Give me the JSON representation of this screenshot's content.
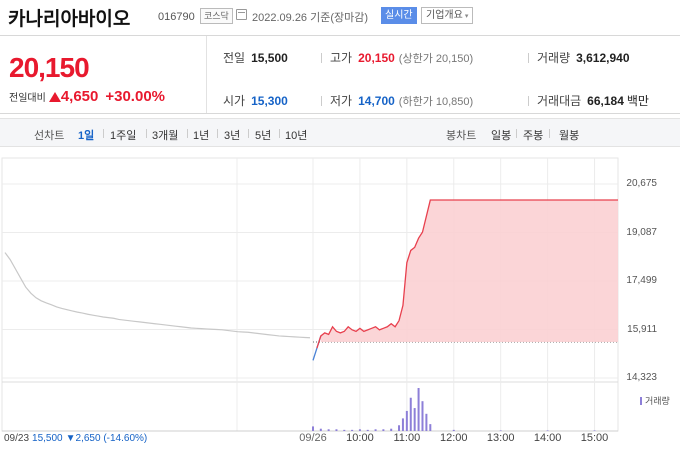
{
  "header": {
    "company": "카나리아바이오",
    "code": "016790",
    "market_badge": "코스닥",
    "date": "2022.09.26 기준(장마감)",
    "realtime_button": "실시간",
    "company_info_button": "기업개요",
    "company_info_caret": "▾"
  },
  "quote": {
    "price": "20,150",
    "change_label": "전일대비",
    "change_amount": "4,650",
    "change_percent": "+30.00%",
    "prev_close_label": "전일",
    "prev_close": "15,500",
    "high_label": "고가",
    "high": "20,150",
    "upper_limit_label": "(상한가 20,150)",
    "volume_label": "거래량",
    "volume": "3,612,940",
    "open_label": "시가",
    "open": "15,300",
    "low_label": "저가",
    "low": "14,700",
    "lower_limit_label": "(하한가 10,850)",
    "trade_value_label": "거래대금",
    "trade_value": "66,184",
    "trade_value_unit": "백만"
  },
  "toolbar": {
    "line_chart_label": "선차트",
    "periods": [
      "1일",
      "1주일",
      "3개월",
      "1년",
      "3년",
      "5년",
      "10년"
    ],
    "active_period": "1일",
    "candle_chart_label": "봉차트",
    "candles": [
      "일봉",
      "주봉",
      "월봉"
    ]
  },
  "chart_data": {
    "type": "line",
    "title": "",
    "xlabel": "",
    "ylabel": "",
    "ylim": [
      14323,
      20675
    ],
    "y_ticks": [
      "20,675",
      "19,087",
      "17,499",
      "15,911",
      "14,323"
    ],
    "x_ticks": [
      "09/26",
      "10:00",
      "11:00",
      "12:00",
      "13:00",
      "14:00",
      "15:00"
    ],
    "prev_day_label": "09/23",
    "prev_day_price": "15,500",
    "prev_day_change": "▼2,650 (-14.60%)",
    "reference_price": 15500,
    "volume_legend": "거래량",
    "prev_day_series": {
      "name": "09/23",
      "values": [
        18430,
        18200,
        17900,
        17600,
        17300,
        17100,
        16950,
        16850,
        16780,
        16720,
        16650,
        16600,
        16560,
        16520,
        16480,
        16450,
        16410,
        16380,
        16350,
        16320,
        16300,
        16280,
        16240,
        16220,
        16200,
        16180,
        16160,
        16140,
        16120,
        16100,
        16080,
        16060,
        16040,
        16020,
        16000,
        15980,
        15960,
        15950,
        15940,
        15930,
        15920,
        15910,
        15900,
        15880,
        15860,
        15840,
        15830,
        15820,
        15800,
        15780,
        15760,
        15740,
        15720,
        15700,
        15690,
        15680,
        15670,
        15660,
        15650,
        15640
      ]
    },
    "today_series": {
      "name": "09/26",
      "x": [
        "09:00",
        "09:05",
        "09:10",
        "09:15",
        "09:20",
        "09:25",
        "09:30",
        "09:35",
        "09:40",
        "09:45",
        "09:50",
        "09:55",
        "10:00",
        "10:05",
        "10:10",
        "10:15",
        "10:20",
        "10:25",
        "10:30",
        "10:35",
        "10:40",
        "10:45",
        "10:50",
        "10:55",
        "11:00",
        "11:05",
        "11:10",
        "11:15",
        "11:20",
        "11:30",
        "12:00",
        "12:30",
        "13:00",
        "13:30",
        "14:00",
        "14:30",
        "15:00",
        "15:20",
        "15:30"
      ],
      "values": [
        14900,
        15300,
        15700,
        15800,
        15750,
        16000,
        15850,
        15800,
        15850,
        16000,
        15900,
        15850,
        15950,
        15850,
        15900,
        15950,
        16000,
        15900,
        15950,
        16000,
        16100,
        16000,
        16200,
        16700,
        18100,
        18500,
        18600,
        18900,
        19100,
        20150,
        20150,
        20150,
        20150,
        20150,
        20150,
        20150,
        20150,
        20150,
        20150
      ]
    },
    "volume": {
      "name": "거래량",
      "x": [
        "09:00",
        "09:10",
        "09:20",
        "09:30",
        "09:40",
        "09:50",
        "10:00",
        "10:10",
        "10:20",
        "10:30",
        "10:40",
        "10:50",
        "10:55",
        "11:00",
        "11:05",
        "11:10",
        "11:15",
        "11:20",
        "11:25",
        "11:30",
        "12:00",
        "13:00",
        "14:00",
        "15:00"
      ],
      "values": [
        8,
        4,
        3,
        3,
        2,
        2,
        3,
        2,
        3,
        3,
        4,
        10,
        22,
        35,
        58,
        40,
        75,
        52,
        30,
        12,
        2,
        1,
        1,
        1
      ]
    }
  }
}
